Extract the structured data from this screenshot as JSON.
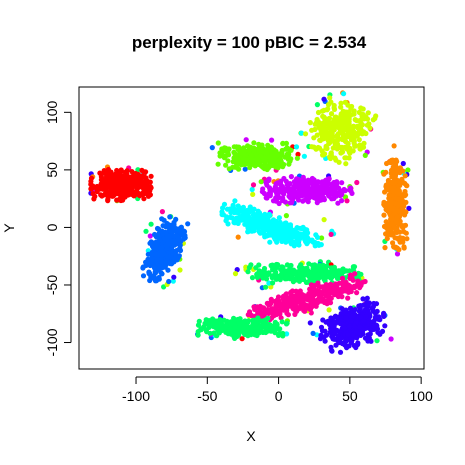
{
  "chart_data": {
    "type": "scatter",
    "title": "perplexity = 100 pBIC = 2.534",
    "xlabel": "X",
    "ylabel": "Y",
    "xlim": [
      -140,
      102
    ],
    "ylim": [
      -123,
      122
    ],
    "xticks": [
      "-100",
      "-50",
      "0",
      "50",
      "100"
    ],
    "yticks": [
      "-100",
      "-50",
      "0",
      "50",
      "100"
    ],
    "xtick_values": [
      -100,
      -50,
      0,
      50,
      100
    ],
    "ytick_values": [
      -100,
      -50,
      0,
      50,
      100
    ],
    "grid": false,
    "legend": "none",
    "clusters": [
      {
        "color": "#FF0000",
        "cx": -110,
        "cy": 37,
        "rx": 21,
        "ry": 13,
        "angle": 0,
        "n": 340
      },
      {
        "color": "#0066FF",
        "cx": -80,
        "cy": -20,
        "rx": 11,
        "ry": 28,
        "angle": -15,
        "n": 300
      },
      {
        "color": "#66FF00",
        "cx": -15,
        "cy": 62,
        "rx": 27,
        "ry": 11,
        "angle": 0,
        "n": 330
      },
      {
        "color": "#CCFF00",
        "cx": 43,
        "cy": 85,
        "rx": 21,
        "ry": 24,
        "angle": -30,
        "n": 300
      },
      {
        "color": "#CC00FF",
        "cx": 20,
        "cy": 32,
        "rx": 30,
        "ry": 11,
        "angle": 0,
        "n": 330
      },
      {
        "color": "#00FFFF",
        "cx": -5,
        "cy": 0,
        "rx": 37,
        "ry": 10,
        "angle": -25,
        "n": 330
      },
      {
        "color": "#FF8800",
        "cx": 82,
        "cy": 20,
        "rx": 8,
        "ry": 38,
        "angle": 0,
        "n": 280
      },
      {
        "color": "#00FF66",
        "cx": 18,
        "cy": -40,
        "rx": 38,
        "ry": 8,
        "angle": 0,
        "n": 260
      },
      {
        "color": "#FF0099",
        "cx": 20,
        "cy": -62,
        "rx": 42,
        "ry": 10,
        "angle": 20,
        "n": 320
      },
      {
        "color": "#00FF66",
        "cx": -25,
        "cy": -87,
        "rx": 30,
        "ry": 8,
        "angle": 0,
        "n": 240
      },
      {
        "color": "#3300FF",
        "cx": 52,
        "cy": -86,
        "rx": 24,
        "ry": 17,
        "angle": 30,
        "n": 320
      }
    ],
    "noise_colors": [
      "#FF0000",
      "#0066FF",
      "#66FF00",
      "#CCFF00",
      "#CC00FF",
      "#00FFFF",
      "#FF8800",
      "#00FF66",
      "#FF0099",
      "#3300FF"
    ],
    "noise_n": 140
  }
}
